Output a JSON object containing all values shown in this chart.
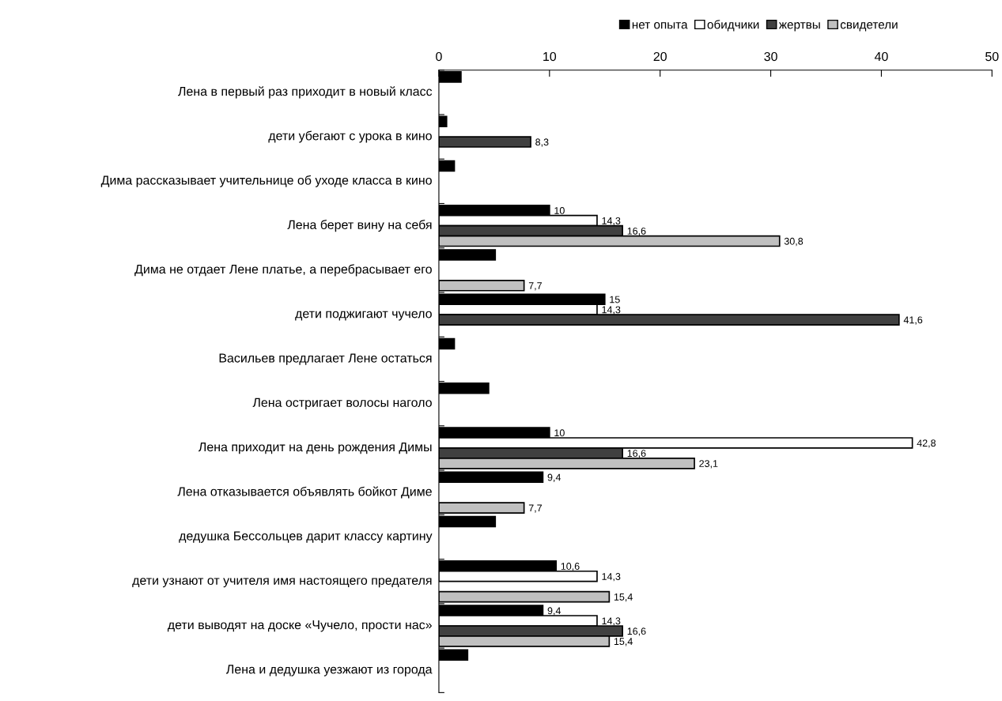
{
  "chart_data": {
    "type": "bar",
    "orientation": "horizontal",
    "legend": "top right",
    "grid": false,
    "categories": [
      "Лена в первый раз приходит в новый класс",
      "дети убегают с урока в кино",
      "Дима рассказывает учительнице об уходе класса в кино",
      "Лена берет вину на себя",
      "Дима не отдает Лене платье, а перебрасывает его",
      "дети поджигают чучело",
      "Васильев предлагает Лене остаться",
      "Лена остригает волосы наголо",
      "Лена приходит на день рождения Димы",
      "Лена отказывается объявлять бойкот Диме",
      "дедушка Бессольцев дарит классу картину",
      "дети узнают от учителя имя настоящего предателя",
      "дети выводят на доске «Чучело, прости нас»",
      "Лена и дедушка уезжают из города"
    ],
    "xlim": [
      0,
      50
    ],
    "xticks": [
      0,
      10,
      20,
      30,
      40,
      50
    ],
    "series": [
      {
        "name": "нет опыта",
        "color": "#000000",
        "values": [
          2.0,
          0.7,
          1.4,
          10,
          5.1,
          15,
          1.4,
          4.5,
          10,
          9.4,
          5.1,
          10.6,
          9.4,
          2.6
        ],
        "value_labels": [
          null,
          null,
          null,
          "10",
          null,
          "15",
          null,
          null,
          "10",
          "9,4",
          null,
          "10,6",
          "9,4",
          null
        ]
      },
      {
        "name": "обидчики",
        "color": "#ffffff",
        "values": [
          null,
          null,
          null,
          14.3,
          null,
          14.3,
          null,
          null,
          42.8,
          null,
          null,
          14.3,
          14.3,
          null
        ],
        "value_labels": [
          null,
          null,
          null,
          "14,3",
          null,
          "14,3",
          null,
          null,
          "42,8",
          null,
          null,
          "14,3",
          "14,3",
          null
        ]
      },
      {
        "name": "жертвы",
        "color": "#404040",
        "values": [
          null,
          8.3,
          null,
          16.6,
          null,
          41.6,
          null,
          null,
          16.6,
          null,
          null,
          null,
          16.6,
          null
        ],
        "value_labels": [
          null,
          "8,3",
          null,
          "16,6",
          null,
          "41,6",
          null,
          null,
          "16,6",
          null,
          null,
          null,
          "16,6",
          null
        ]
      },
      {
        "name": "свидетели",
        "color": "#c0c0c0",
        "values": [
          null,
          null,
          null,
          30.8,
          7.7,
          null,
          null,
          null,
          23.1,
          7.7,
          null,
          15.4,
          15.4,
          null
        ],
        "value_labels": [
          null,
          null,
          null,
          "30,8",
          "7,7",
          null,
          null,
          null,
          "23,1",
          "7,7",
          null,
          "15,4",
          "15,4",
          null
        ]
      }
    ]
  }
}
